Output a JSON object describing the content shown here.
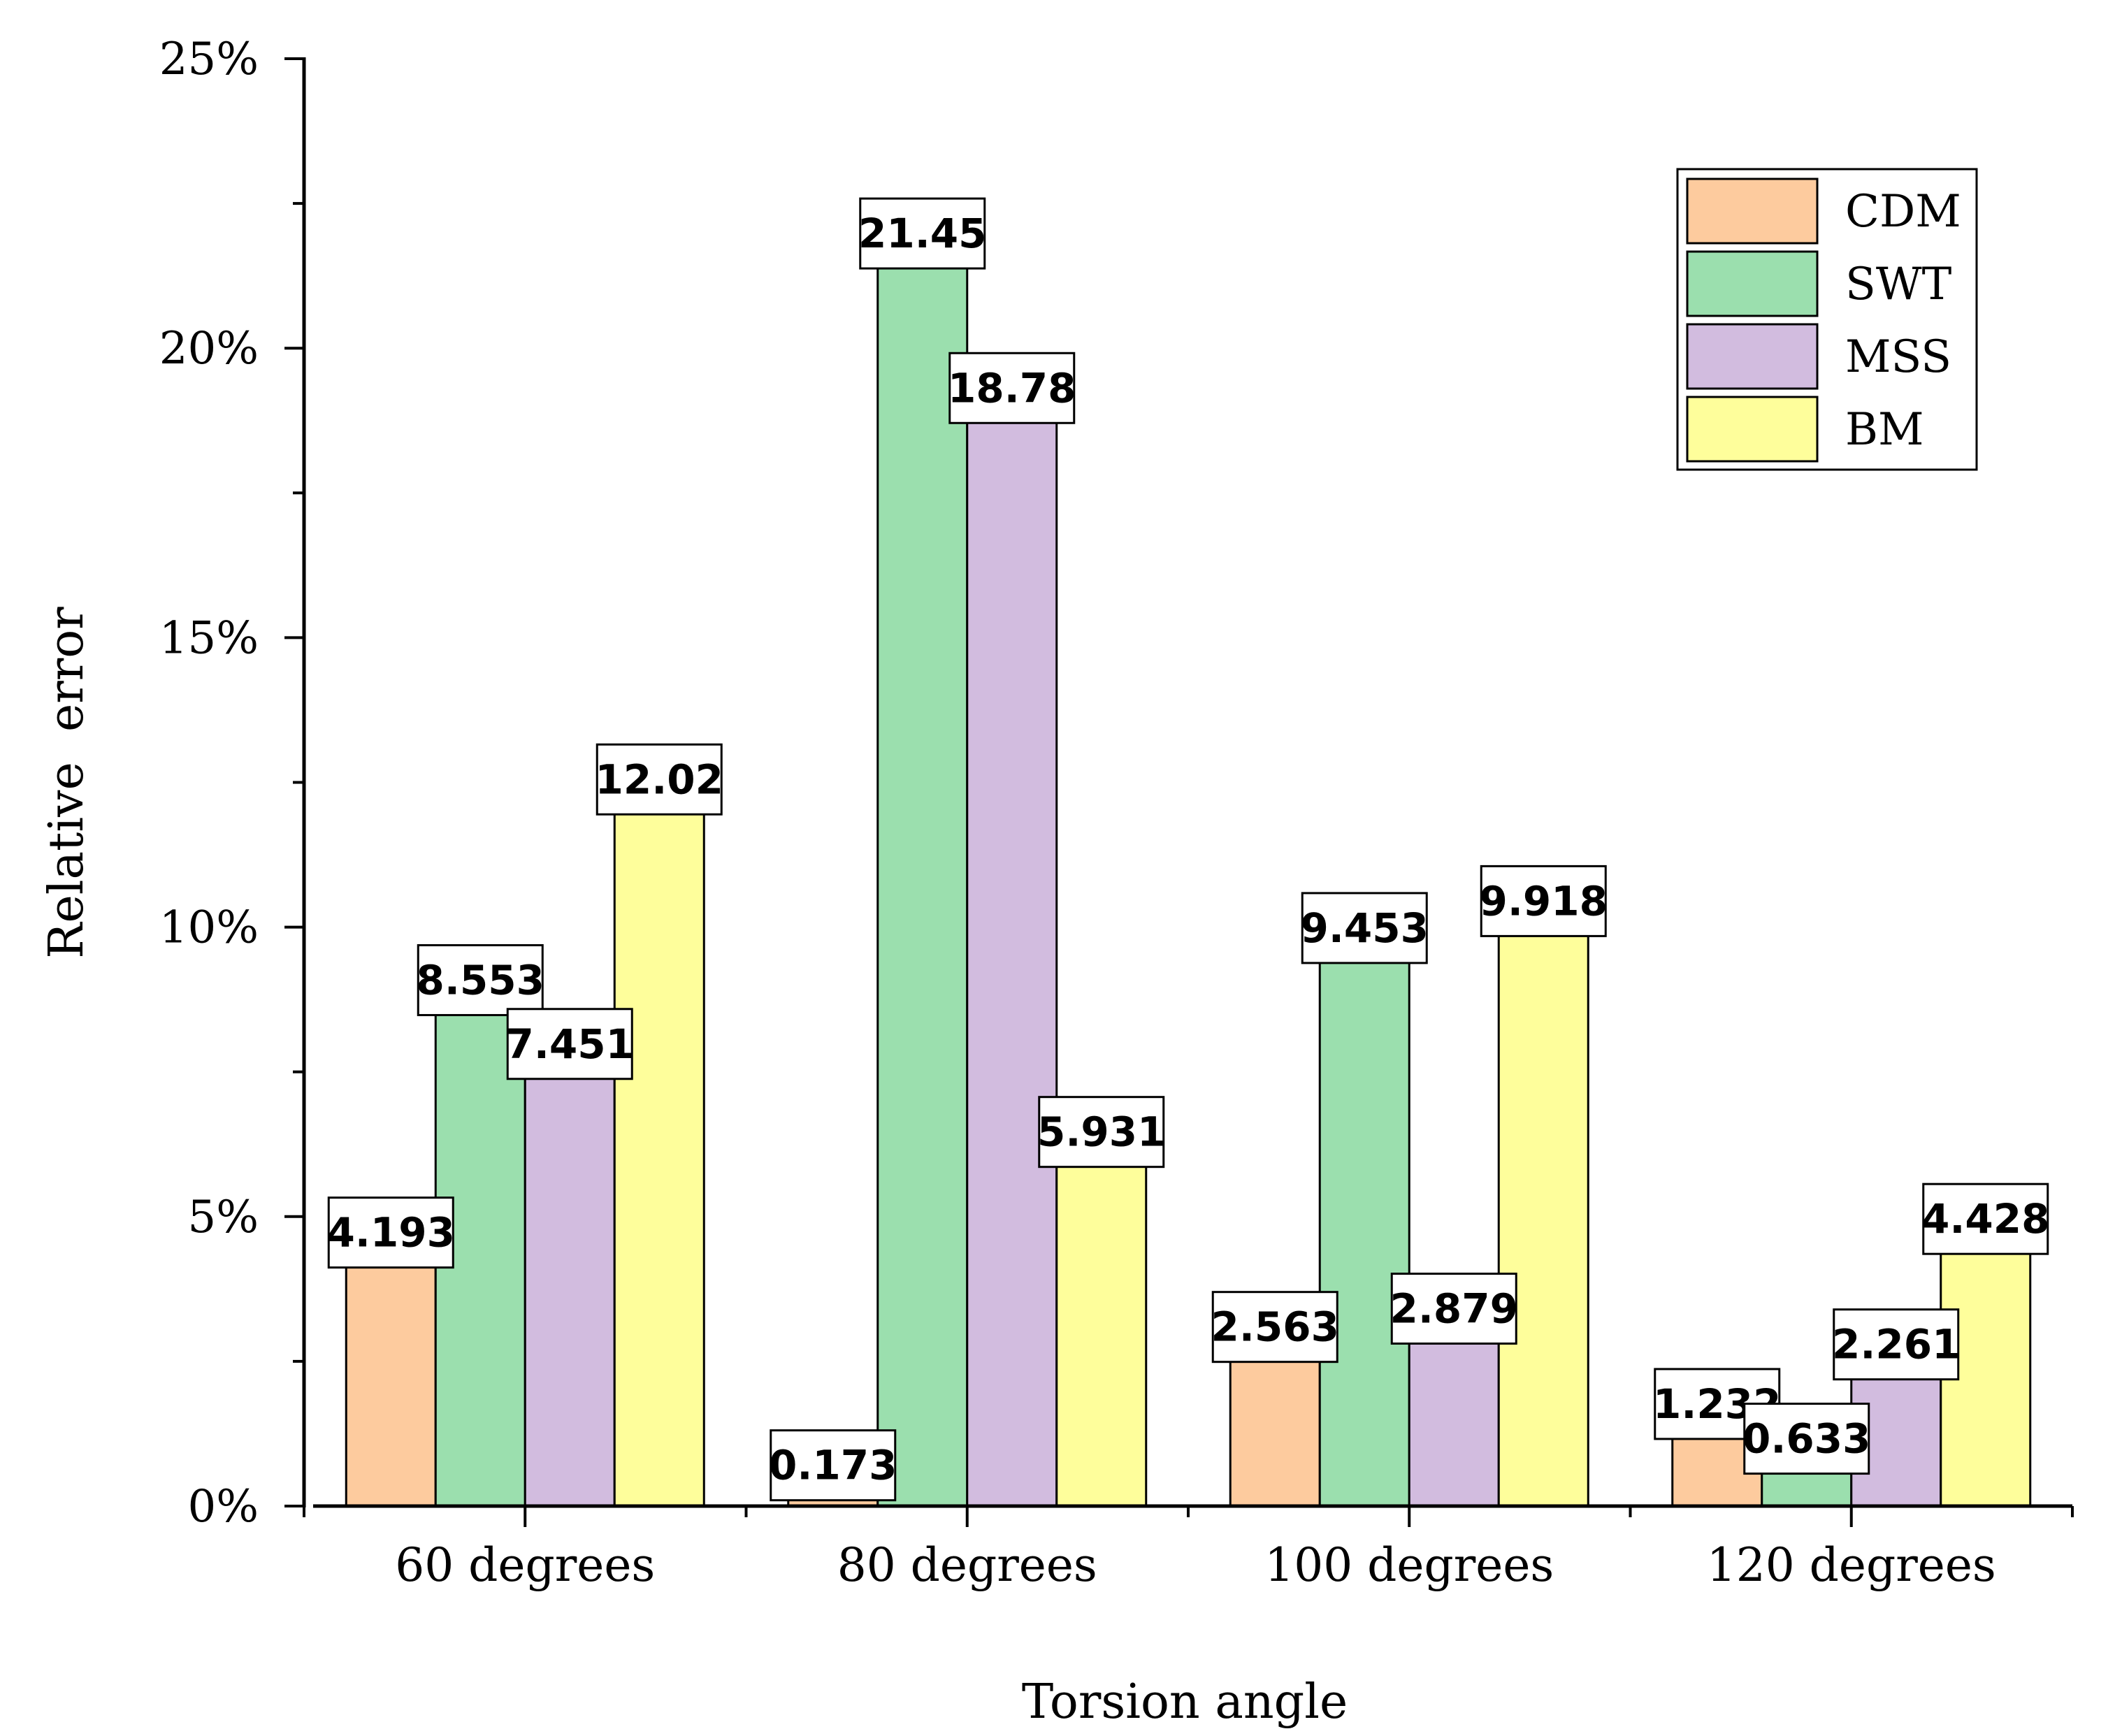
{
  "chart_data": {
    "type": "bar",
    "title": "",
    "xlabel": "Torsion angle",
    "ylabel": "Relative  error",
    "ylim": [
      0,
      25
    ],
    "y_ticks": [
      0,
      5,
      10,
      15,
      20,
      25
    ],
    "y_tick_labels": [
      "0%",
      "5%",
      "10%",
      "15%",
      "20%",
      "25%"
    ],
    "categories": [
      "60 degrees",
      "80 degrees",
      "100 degrees",
      "120 degrees"
    ],
    "series": [
      {
        "name": "CDM",
        "color": "#FDCB9E",
        "values": [
          4.193,
          0.173,
          2.563,
          1.232
        ],
        "labels": [
          "4.193",
          "0.173",
          "2.563",
          "1.232"
        ]
      },
      {
        "name": "SWT",
        "color": "#9BDFAE",
        "values": [
          8.553,
          21.45,
          9.453,
          0.633
        ],
        "labels": [
          "8.553",
          "21.45",
          "9.453",
          "0.633"
        ]
      },
      {
        "name": "MSS",
        "color": "#D2BCDF",
        "values": [
          7.451,
          18.78,
          2.879,
          2.261
        ],
        "labels": [
          "7.451",
          "18.78",
          "2.879",
          "2.261"
        ]
      },
      {
        "name": "BM",
        "color": "#FEFE9B",
        "values": [
          12.02,
          5.931,
          9.918,
          4.428
        ],
        "labels": [
          "12.02",
          "5.931",
          "9.918",
          "4.428"
        ]
      }
    ],
    "grid": false,
    "legend_position": "top-right"
  }
}
